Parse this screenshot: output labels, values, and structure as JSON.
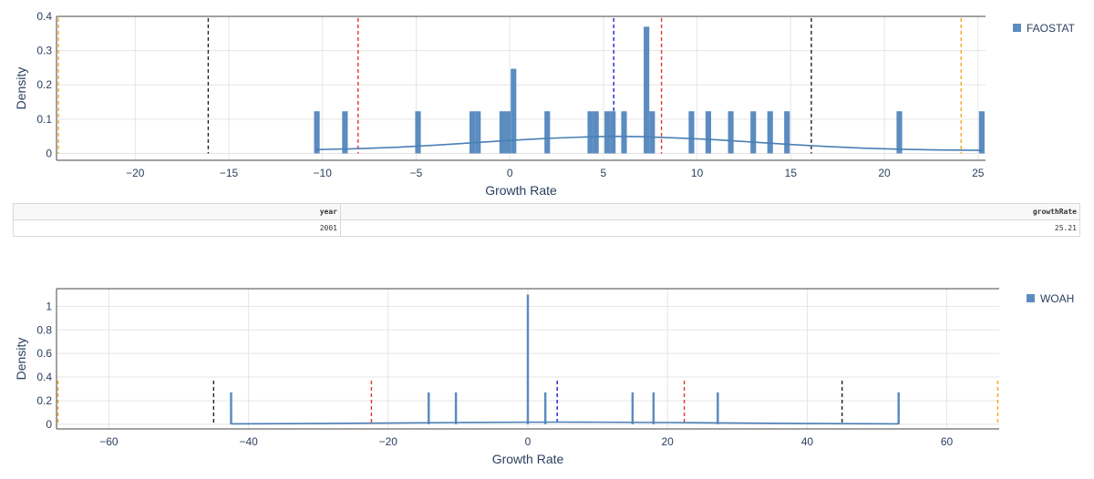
{
  "colors": {
    "bar": "#5b8cc0",
    "kde": "#4a7fb5",
    "grid": "#e5e5e5",
    "axis_text": "#2a3f5f",
    "mean_line": "#1f1fd6",
    "sd1_line": "#e8312f",
    "sd2_line": "#222222",
    "sd3_line": "#f5a623"
  },
  "table": {
    "headers": [
      "year",
      "growthRate"
    ],
    "rows": [
      [
        "2001",
        "25.21"
      ]
    ]
  },
  "chart_data": [
    {
      "type": "bar",
      "xlabel": "Growth Rate",
      "ylabel": "Density",
      "xlim": [
        -24.2,
        25.4
      ],
      "ylim": [
        -0.02,
        0.4
      ],
      "xticks": [
        -20,
        -15,
        -10,
        -5,
        0,
        5,
        10,
        15,
        20,
        25
      ],
      "xtick_labels": [
        "−20",
        "−15",
        "−10",
        "−5",
        "0",
        "5",
        "10",
        "15",
        "20",
        "25"
      ],
      "yticks": [
        0,
        0.1,
        0.2,
        0.3,
        0.4
      ],
      "ytick_labels": [
        "0",
        "0.1",
        "0.2",
        "0.3",
        "0.4"
      ],
      "grid": true,
      "legend": "top-right",
      "series": [
        {
          "name": "FAOSTAT",
          "bin_width": 0.3,
          "bars": [
            {
              "x": -10.3,
              "y": 0.123
            },
            {
              "x": -8.8,
              "y": 0.123
            },
            {
              "x": -4.9,
              "y": 0.123
            },
            {
              "x": -2.0,
              "y": 0.123
            },
            {
              "x": -1.7,
              "y": 0.123
            },
            {
              "x": -0.4,
              "y": 0.123
            },
            {
              "x": -0.1,
              "y": 0.123
            },
            {
              "x": 0.2,
              "y": 0.247
            },
            {
              "x": 2.0,
              "y": 0.123
            },
            {
              "x": 4.3,
              "y": 0.123
            },
            {
              "x": 4.6,
              "y": 0.123
            },
            {
              "x": 5.2,
              "y": 0.123
            },
            {
              "x": 5.5,
              "y": 0.123
            },
            {
              "x": 6.1,
              "y": 0.123
            },
            {
              "x": 7.3,
              "y": 0.37
            },
            {
              "x": 7.6,
              "y": 0.123
            },
            {
              "x": 9.7,
              "y": 0.123
            },
            {
              "x": 10.6,
              "y": 0.123
            },
            {
              "x": 11.8,
              "y": 0.123
            },
            {
              "x": 13.0,
              "y": 0.123
            },
            {
              "x": 13.9,
              "y": 0.123
            },
            {
              "x": 14.8,
              "y": 0.123
            },
            {
              "x": 20.8,
              "y": 0.123
            },
            {
              "x": 25.2,
              "y": 0.123
            }
          ],
          "kde": {
            "x": [
              -10.4,
              -8,
              -6,
              -4,
              -2,
              0,
              2,
              4,
              5.5,
              7,
              9,
              11,
              13,
              15,
              17,
              19,
              21,
              23,
              25.2
            ],
            "y": [
              0.011,
              0.014,
              0.018,
              0.024,
              0.031,
              0.038,
              0.044,
              0.048,
              0.05,
              0.049,
              0.045,
              0.04,
              0.033,
              0.026,
              0.02,
              0.015,
              0.012,
              0.01,
              0.009
            ]
          }
        }
      ],
      "reference_lines": {
        "mean": [
          5.55
        ],
        "sd1": [
          -8.1,
          8.1
        ],
        "sd2": [
          -16.1,
          16.1
        ],
        "sd3": [
          -24.1,
          24.1
        ]
      }
    },
    {
      "type": "bar",
      "xlabel": "Growth Rate",
      "ylabel": "Density",
      "xlim": [
        -67.5,
        67.5
      ],
      "ylim": [
        -0.04,
        1.15
      ],
      "xticks": [
        -60,
        -40,
        -20,
        0,
        20,
        40,
        60
      ],
      "xtick_labels": [
        "−60",
        "−40",
        "−20",
        "0",
        "20",
        "40",
        "60"
      ],
      "yticks": [
        0,
        0.2,
        0.4,
        0.6,
        0.8,
        1
      ],
      "ytick_labels": [
        "0",
        "0.2",
        "0.4",
        "0.6",
        "0.8",
        "1"
      ],
      "grid": true,
      "legend": "top-right",
      "series": [
        {
          "name": "WOAH",
          "bin_width": 0.3,
          "bars": [
            {
              "x": -42.5,
              "y": 0.27
            },
            {
              "x": -14.2,
              "y": 0.27
            },
            {
              "x": -10.3,
              "y": 0.27
            },
            {
              "x": 0.0,
              "y": 1.1
            },
            {
              "x": 2.5,
              "y": 0.27
            },
            {
              "x": 15.0,
              "y": 0.27
            },
            {
              "x": 18.0,
              "y": 0.27
            },
            {
              "x": 27.2,
              "y": 0.27
            },
            {
              "x": 53.1,
              "y": 0.27
            }
          ],
          "kde": {
            "x": [
              -42.5,
              -30,
              -20,
              -10,
              0,
              5,
              10,
              20,
              30,
              40,
              53.1
            ],
            "y": [
              0.003,
              0.006,
              0.01,
              0.014,
              0.017,
              0.018,
              0.017,
              0.014,
              0.01,
              0.006,
              0.003
            ]
          }
        }
      ],
      "reference_lines": {
        "mean": [
          4.2
        ],
        "sd1": [
          -22.4,
          22.4
        ],
        "sd2": [
          -45.0,
          45.0
        ],
        "sd3": [
          -67.3,
          67.3
        ]
      }
    }
  ]
}
